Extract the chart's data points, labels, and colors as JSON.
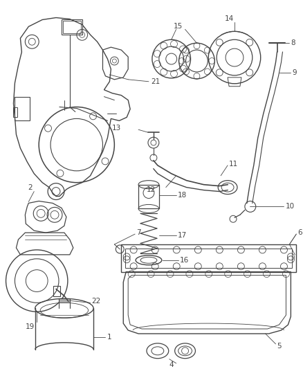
{
  "bg_color": "#ffffff",
  "line_color": "#444444",
  "fig_width": 4.39,
  "fig_height": 5.33,
  "dpi": 100
}
